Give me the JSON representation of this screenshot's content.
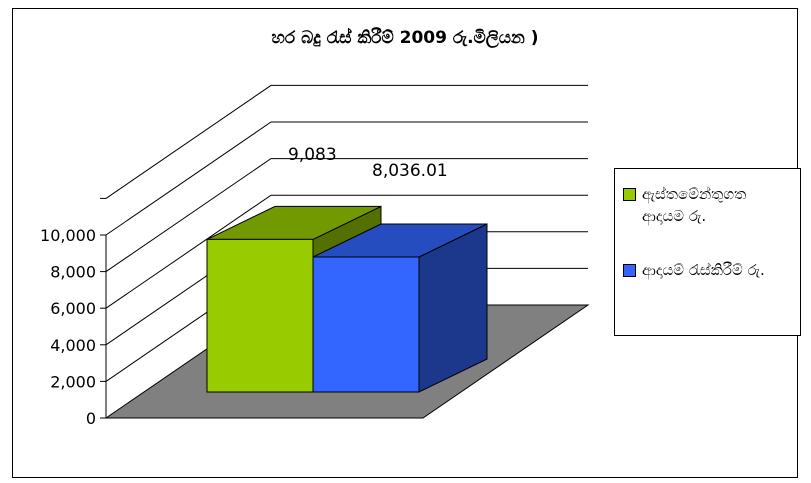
{
  "chart_data": {
    "type": "bar",
    "title": "හර බදු රැස් කිරීම් 2009 රු.මිලියන )",
    "categories": [
      ""
    ],
    "series": [
      {
        "name": "ඇස්තමේන්තුගත ආදායම රු.",
        "values": [
          9083
        ],
        "label": "9,083",
        "color": "#99cc00"
      },
      {
        "name": "ආදායම් රැස්කිරීම් රු.",
        "values": [
          8036.01
        ],
        "label": "8,036.01",
        "color": "#3366ff"
      }
    ],
    "y_ticks": [
      "0",
      "2,000",
      "4,000",
      "6,000",
      "8,000",
      "10,000"
    ],
    "ylim": [
      0,
      10000
    ],
    "grid": true,
    "legend_position": "right",
    "floor_color": "#808080"
  }
}
